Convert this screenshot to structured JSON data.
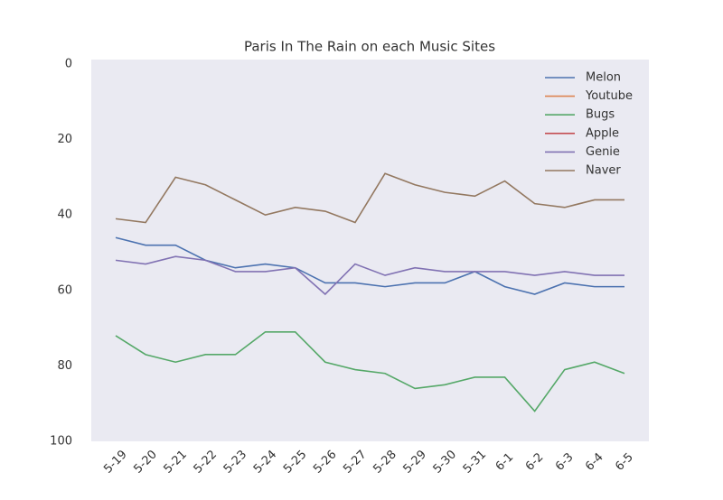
{
  "chart_data": {
    "type": "line",
    "title": "Paris In The Rain on each Music Sites",
    "categories": [
      "5-19",
      "5-20",
      "5-21",
      "5-22",
      "5-23",
      "5-24",
      "5-25",
      "5-26",
      "5-27",
      "5-28",
      "5-29",
      "5-30",
      "5-31",
      "6-1",
      "6-2",
      "6-3",
      "6-4",
      "6-5"
    ],
    "series": [
      {
        "name": "Melon",
        "color": "#4c72b0",
        "values": [
          46,
          48,
          48,
          52,
          54,
          53,
          54,
          58,
          58,
          59,
          58,
          58,
          55,
          59,
          61,
          58,
          59,
          59
        ]
      },
      {
        "name": "Youtube",
        "color": "#dd8452",
        "values": [
          null,
          null,
          null,
          null,
          null,
          null,
          null,
          null,
          null,
          null,
          null,
          null,
          null,
          null,
          null,
          null,
          null,
          null
        ]
      },
      {
        "name": "Bugs",
        "color": "#55a868",
        "values": [
          72,
          77,
          79,
          77,
          77,
          71,
          71,
          79,
          81,
          82,
          86,
          85,
          83,
          83,
          92,
          81,
          79,
          82
        ]
      },
      {
        "name": "Apple",
        "color": "#c44e52",
        "values": [
          null,
          null,
          null,
          null,
          null,
          null,
          null,
          null,
          null,
          null,
          null,
          null,
          null,
          null,
          null,
          null,
          null,
          null
        ]
      },
      {
        "name": "Genie",
        "color": "#8172b3",
        "values": [
          52,
          53,
          51,
          52,
          55,
          55,
          54,
          61,
          53,
          56,
          54,
          55,
          55,
          55,
          56,
          55,
          56,
          56
        ]
      },
      {
        "name": "Naver",
        "color": "#937860",
        "values": [
          41,
          42,
          30,
          32,
          36,
          40,
          38,
          39,
          42,
          29,
          32,
          34,
          35,
          31,
          37,
          38,
          36,
          36
        ]
      }
    ],
    "ylim": [
      0,
      100
    ],
    "inverted": true,
    "yticks": [
      0,
      20,
      40,
      60,
      80,
      100
    ],
    "grid": false,
    "legend": "upper right"
  }
}
